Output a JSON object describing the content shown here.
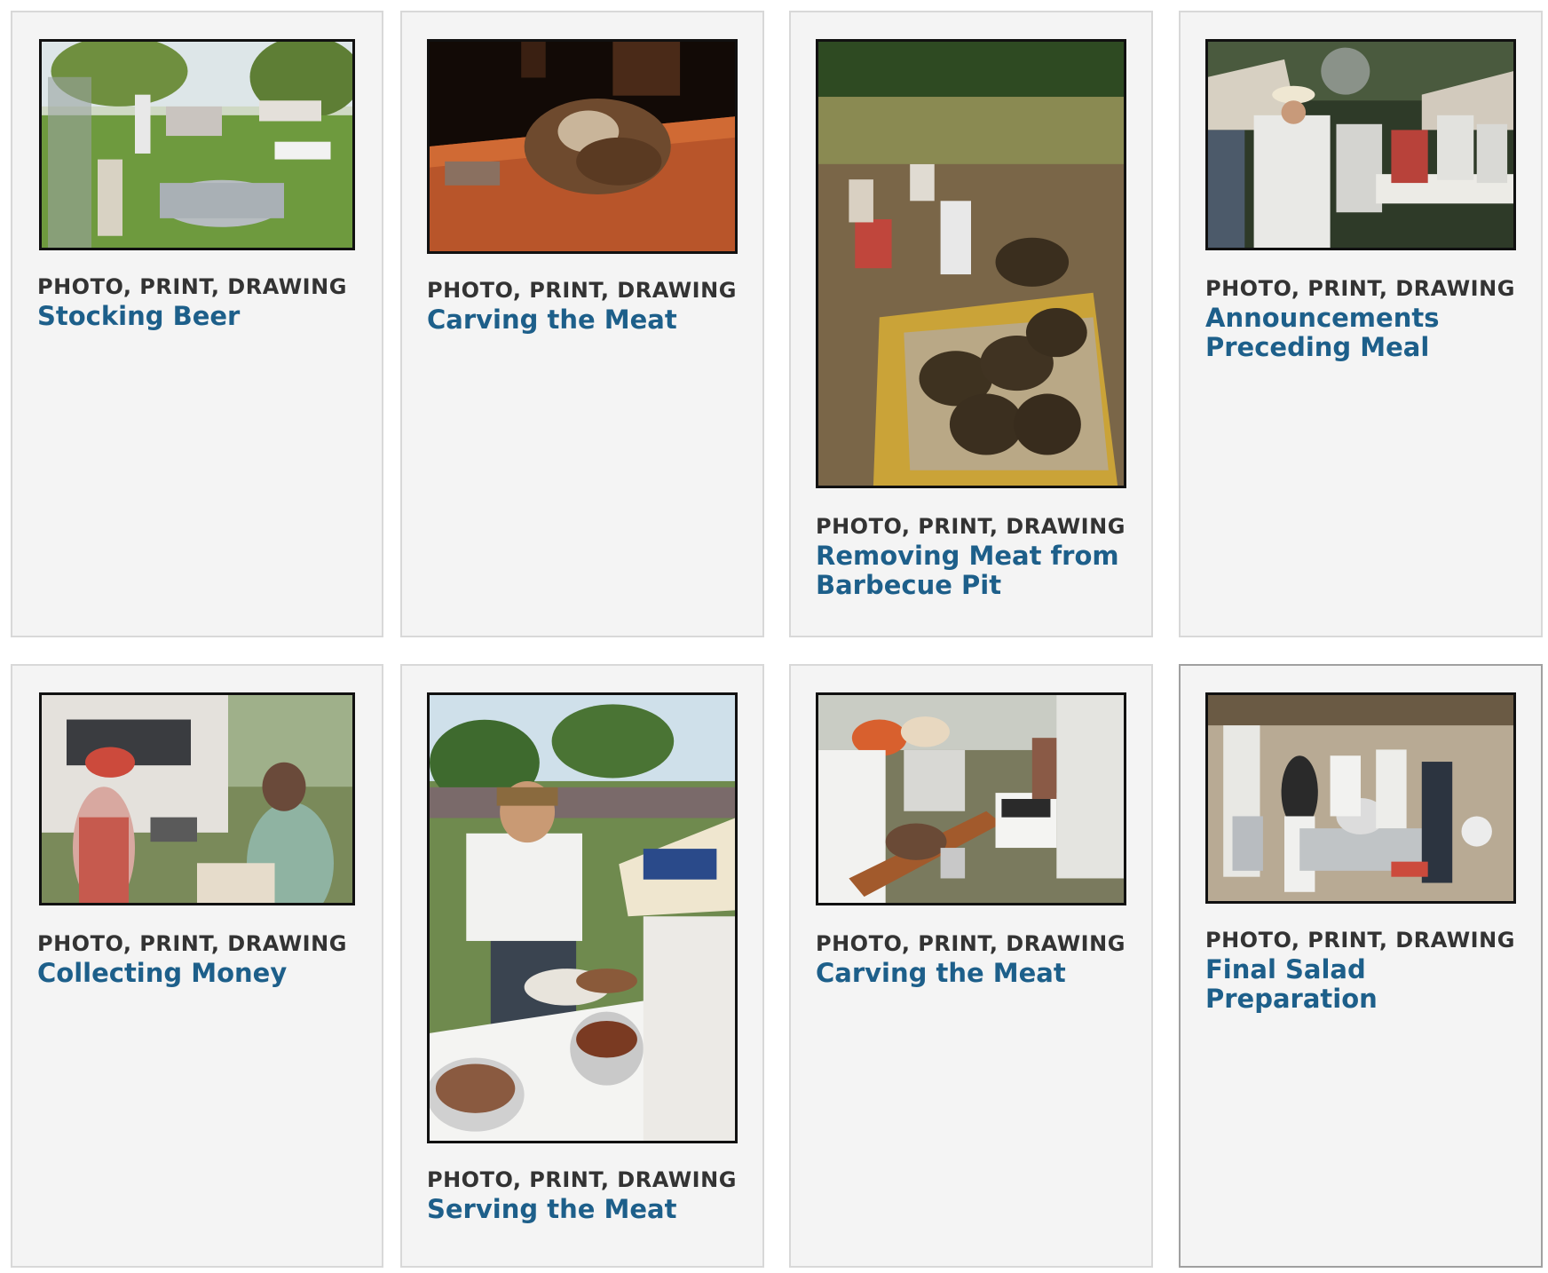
{
  "gallery": {
    "items": [
      {
        "format": "PHOTO, PRINT, DRAWING",
        "title": "Stocking Beer",
        "photo": "outdoor-field-photo"
      },
      {
        "format": "PHOTO, PRINT, DRAWING",
        "title": "Carving the Meat",
        "photo": "meat-cutting-board-photo"
      },
      {
        "format": "PHOTO, PRINT, DRAWING",
        "title": "Removing Meat from Barbecue Pit",
        "photo": "barbecue-pit-photo"
      },
      {
        "format": "PHOTO, PRINT, DRAWING",
        "title": "Announcements Preceding Meal",
        "photo": "crowd-straw-hats-photo"
      },
      {
        "format": "PHOTO, PRINT, DRAWING",
        "title": "Collecting Money",
        "photo": "trailer-women-photo"
      },
      {
        "format": "PHOTO, PRINT, DRAWING",
        "title": "Serving the Meat",
        "photo": "serving-plates-photo"
      },
      {
        "format": "PHOTO, PRINT, DRAWING",
        "title": "Carving the Meat",
        "photo": "carving-table-photo"
      },
      {
        "format": "PHOTO, PRINT, DRAWING",
        "title": "Final Salad Preparation",
        "photo": "kitchen-interior-photo"
      }
    ]
  }
}
